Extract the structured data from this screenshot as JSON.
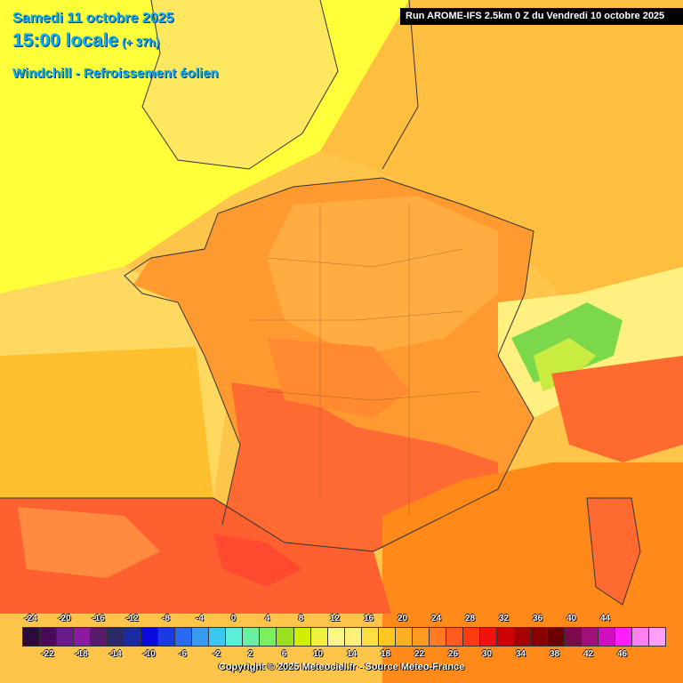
{
  "header": {
    "date": "Samedi 11 octobre 2025",
    "hour": "15:00 locale",
    "lead": "(+ 37h)",
    "parameter": "Windchill - Refroissement éolien",
    "run": "Run AROME-IFS 2.5km 0 Z du Vendredi 10 octobre 2025"
  },
  "legend": {
    "top_labels": [
      "-24",
      "-20",
      "-16",
      "-12",
      "-8",
      "-4",
      "0",
      "4",
      "8",
      "12",
      "16",
      "20",
      "24",
      "28",
      "32",
      "36",
      "40",
      "44"
    ],
    "bottom_labels": [
      "-22",
      "-18",
      "-14",
      "-10",
      "-6",
      "-2",
      "2",
      "6",
      "10",
      "14",
      "18",
      "22",
      "26",
      "30",
      "34",
      "38",
      "42",
      "46"
    ],
    "colors": [
      "#2d0a3a",
      "#4a0a5a",
      "#6a1a8a",
      "#8a1aa0",
      "#5a1a6a",
      "#2a2a6a",
      "#1a2aa0",
      "#0a0ae0",
      "#1a3ae8",
      "#2a6af0",
      "#3a9af0",
      "#3ac8f0",
      "#5af0d8",
      "#6af0a0",
      "#7af060",
      "#9ae020",
      "#d0f000",
      "#f0f040",
      "#fff68a",
      "#fff07a",
      "#ffe040",
      "#ffc820",
      "#ffb020",
      "#ff9a20",
      "#ff7a20",
      "#ff5a20",
      "#ff3a10",
      "#f01010",
      "#d00000",
      "#a80000",
      "#8a0000",
      "#6a0000",
      "#7a0a4a",
      "#a0107a",
      "#d010c0",
      "#ff20ff",
      "#ff80f0",
      "#ffa0ff"
    ]
  },
  "copyright": "Copyright © 2025 Meteociel.fr - Source Meteo-France",
  "colors": {
    "title": "#00b4ff",
    "sea_north": "#ffff38",
    "sea_atlantic": "#ffd04a",
    "france_core": "#ff9a30",
    "france_south": "#ff6030",
    "mediterranean": "#ff8a20",
    "alps_green": "#5ad84a"
  }
}
